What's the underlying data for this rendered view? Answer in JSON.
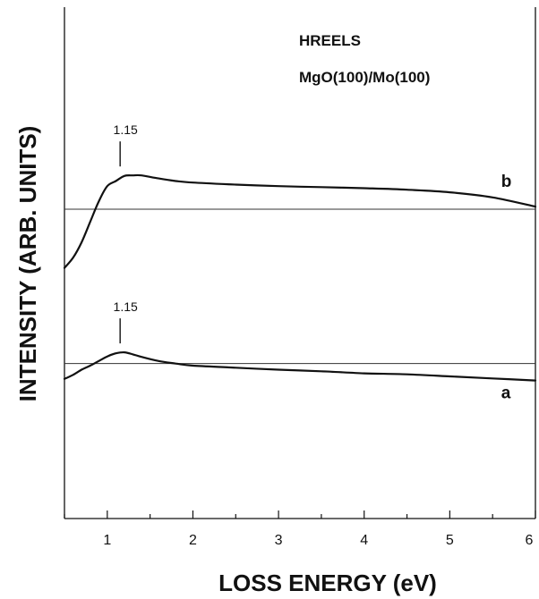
{
  "chart_data": {
    "type": "line",
    "title": "",
    "xlabel": "LOSS ENERGY (eV)",
    "ylabel": "INTENSITY (ARB. UNITS)",
    "xlim": [
      0.5,
      6
    ],
    "ylim": [
      0,
      1
    ],
    "x_ticks": [
      "1",
      "2",
      "3",
      "4",
      "5",
      "6"
    ],
    "x_tick_values": [
      1,
      2,
      3,
      4,
      5,
      6
    ],
    "grid": false,
    "y_ticks_shown": false,
    "annotations": [
      "HREELS",
      "MgO(100)/Mo(100)"
    ],
    "series": [
      {
        "name": "b",
        "baseline": 0.605,
        "peak_label": "1.15",
        "peak_marker_x": 1.15,
        "x": [
          0.5,
          0.6,
          0.7,
          0.8,
          0.9,
          1.0,
          1.1,
          1.2,
          1.3,
          1.4,
          1.6,
          1.8,
          2.0,
          2.5,
          3.0,
          3.5,
          4.0,
          4.5,
          5.0,
          5.5,
          6.0
        ],
        "values": [
          0.49,
          0.51,
          0.54,
          0.58,
          0.62,
          0.65,
          0.66,
          0.67,
          0.671,
          0.671,
          0.665,
          0.66,
          0.657,
          0.653,
          0.65,
          0.648,
          0.646,
          0.643,
          0.638,
          0.628,
          0.61
        ]
      },
      {
        "name": "a",
        "baseline": 0.303,
        "peak_label": "1.15",
        "peak_marker_x": 1.15,
        "x": [
          0.5,
          0.6,
          0.7,
          0.8,
          0.9,
          1.0,
          1.1,
          1.2,
          1.3,
          1.4,
          1.6,
          1.8,
          2.0,
          2.5,
          3.0,
          3.5,
          4.0,
          4.5,
          5.0,
          5.5,
          6.0
        ],
        "values": [
          0.273,
          0.281,
          0.291,
          0.299,
          0.308,
          0.317,
          0.323,
          0.325,
          0.321,
          0.316,
          0.308,
          0.303,
          0.299,
          0.295,
          0.291,
          0.288,
          0.284,
          0.282,
          0.278,
          0.274,
          0.27
        ]
      }
    ]
  }
}
